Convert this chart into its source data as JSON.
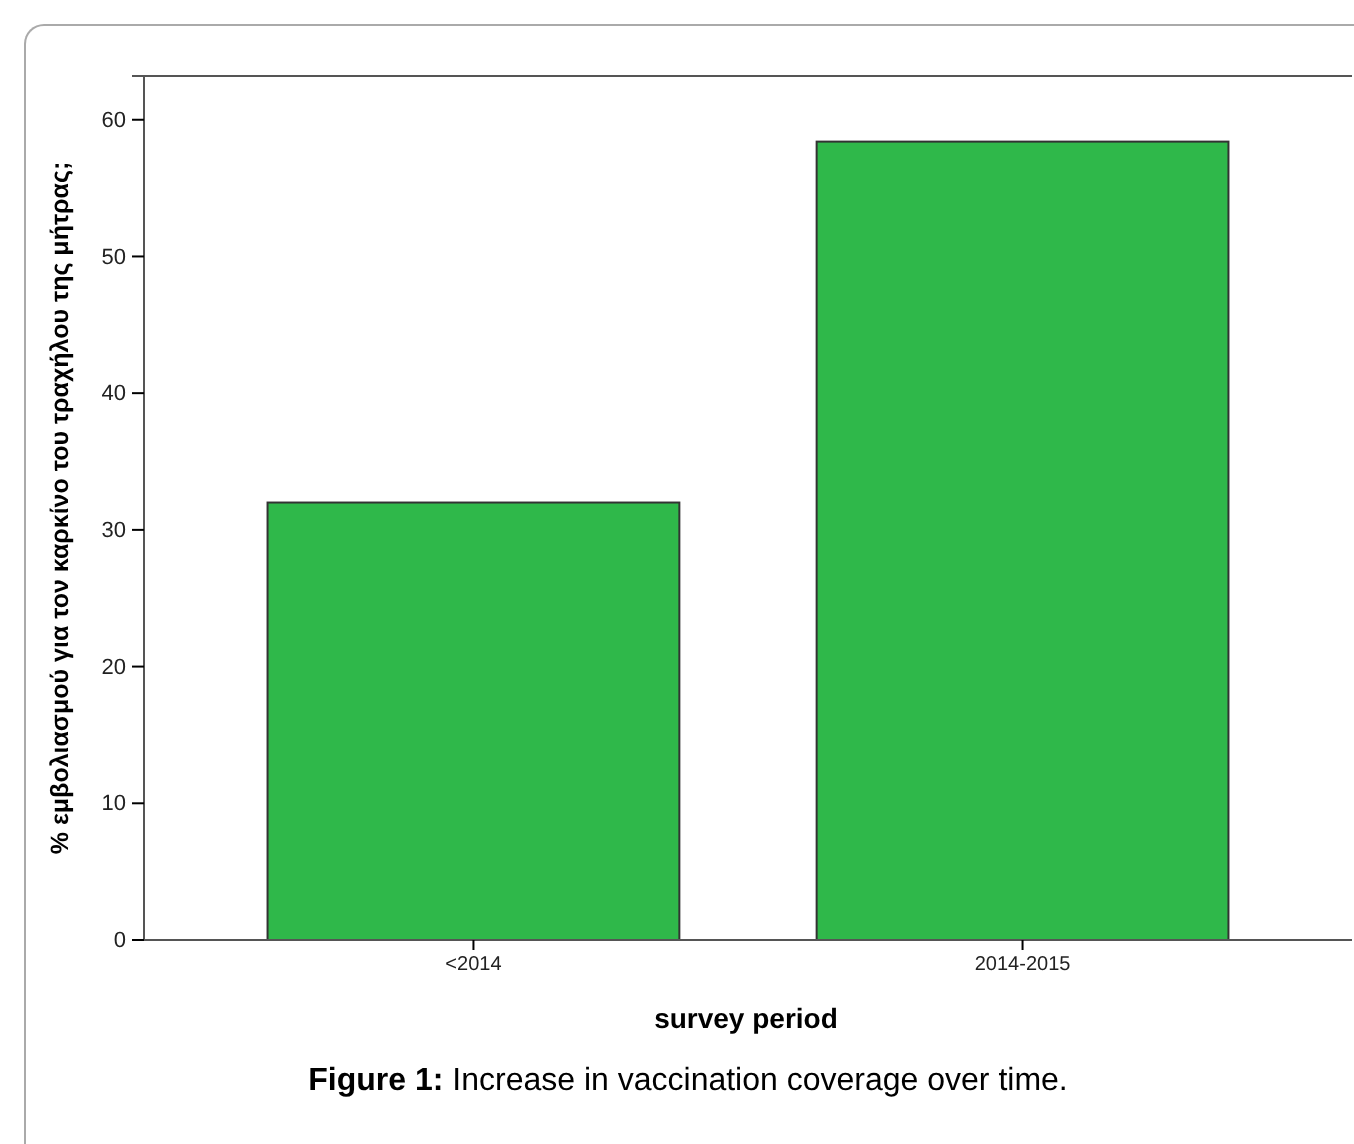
{
  "chart_data": {
    "type": "bar",
    "ylabel": "% εμβολιασμού για τον καρκίνο του τραχήλου της μήτρας;",
    "xlabel": "survey period",
    "categories": [
      "<2014",
      "2014-2015"
    ],
    "values": [
      32.0,
      58.4
    ],
    "color": "#2fb84a",
    "ylim": [
      0,
      63.2
    ],
    "yticks": [
      0,
      10,
      20,
      30,
      40,
      50,
      60
    ],
    "grid": false,
    "annotations": [
      "Figure 1: Increase in vaccination coverage over time."
    ]
  }
}
